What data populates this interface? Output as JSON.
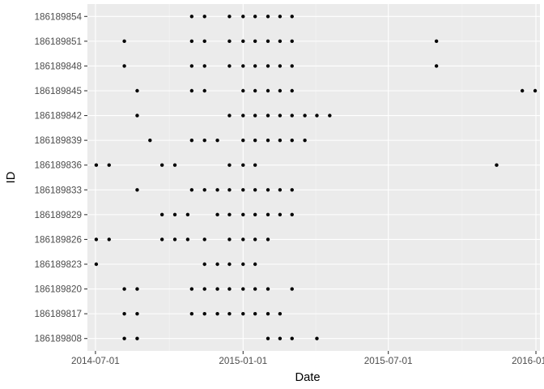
{
  "chart_data": {
    "type": "scatter",
    "xlabel": "Date",
    "ylabel": "ID",
    "x_ticks": [
      "2014-07-01",
      "2015-01-01",
      "2015-07-01",
      "2016-01-01"
    ],
    "x_tick_labels": [
      "2014-07-01",
      "2015-01-01",
      "2015-07-01",
      "2016-01-01"
    ],
    "xlim": [
      "2014-06-21",
      "2016-01-06"
    ],
    "categories": [
      "186189808",
      "186189817",
      "186189820",
      "186189823",
      "186189826",
      "186189829",
      "186189833",
      "186189836",
      "186189839",
      "186189842",
      "186189845",
      "186189848",
      "186189851",
      "186189854"
    ],
    "points": {
      "186189854": [
        "2014-10-29",
        "2014-11-14",
        "2014-12-15",
        "2015-01-01",
        "2015-01-16",
        "2015-02-01",
        "2015-02-16",
        "2015-03-03"
      ],
      "186189851": [
        "2014-08-06",
        "2014-10-29",
        "2014-11-14",
        "2014-12-15",
        "2015-01-01",
        "2015-01-16",
        "2015-02-01",
        "2015-02-16",
        "2015-03-03",
        "2015-08-30"
      ],
      "186189848": [
        "2014-08-06",
        "2014-10-29",
        "2014-11-14",
        "2014-12-15",
        "2015-01-01",
        "2015-01-16",
        "2015-02-01",
        "2015-02-16",
        "2015-03-03",
        "2015-08-30"
      ],
      "186189845": [
        "2014-08-22",
        "2014-10-29",
        "2014-11-14",
        "2015-01-01",
        "2015-01-16",
        "2015-02-01",
        "2015-02-16",
        "2015-03-03",
        "2015-12-15",
        "2015-12-31"
      ],
      "186189842": [
        "2014-08-22",
        "2014-12-15",
        "2015-01-01",
        "2015-01-16",
        "2015-02-01",
        "2015-02-16",
        "2015-03-03",
        "2015-03-19",
        "2015-04-03",
        "2015-04-19"
      ],
      "186189839": [
        "2014-09-07",
        "2014-10-29",
        "2014-11-14",
        "2014-11-30",
        "2015-01-01",
        "2015-01-16",
        "2015-02-01",
        "2015-02-16",
        "2015-03-03",
        "2015-03-19"
      ],
      "186189836": [
        "2014-07-02",
        "2014-07-18",
        "2014-09-22",
        "2014-10-08",
        "2014-12-15",
        "2015-01-01",
        "2015-01-16",
        "2015-11-13"
      ],
      "186189833": [
        "2014-08-22",
        "2014-10-29",
        "2014-11-14",
        "2014-11-30",
        "2014-12-15",
        "2015-01-01",
        "2015-01-16",
        "2015-02-01",
        "2015-02-16",
        "2015-03-03"
      ],
      "186189829": [
        "2014-09-22",
        "2014-10-08",
        "2014-10-24",
        "2014-11-30",
        "2014-12-15",
        "2015-01-01",
        "2015-01-16",
        "2015-02-01",
        "2015-02-16",
        "2015-03-03"
      ],
      "186189826": [
        "2014-07-02",
        "2014-07-18",
        "2014-09-22",
        "2014-10-08",
        "2014-10-24",
        "2014-11-14",
        "2014-12-15",
        "2015-01-01",
        "2015-01-16",
        "2015-02-01"
      ],
      "186189823": [
        "2014-07-02",
        "2014-11-14",
        "2014-11-30",
        "2014-12-15",
        "2015-01-01",
        "2015-01-16"
      ],
      "186189820": [
        "2014-08-06",
        "2014-08-22",
        "2014-10-29",
        "2014-11-14",
        "2014-11-30",
        "2014-12-15",
        "2015-01-01",
        "2015-01-16",
        "2015-02-01",
        "2015-03-03"
      ],
      "186189817": [
        "2014-08-06",
        "2014-08-22",
        "2014-10-29",
        "2014-11-14",
        "2014-11-30",
        "2014-12-15",
        "2015-01-01",
        "2015-01-16",
        "2015-02-01",
        "2015-02-16"
      ],
      "186189808": [
        "2014-08-06",
        "2014-08-22",
        "2015-02-01",
        "2015-02-16",
        "2015-03-03",
        "2015-04-03"
      ]
    },
    "grid": true,
    "legend": "none"
  }
}
